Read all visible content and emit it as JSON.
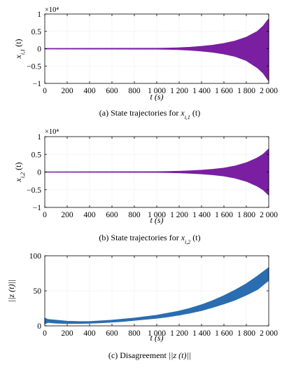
{
  "chart_data": [
    {
      "type": "line",
      "panel": "a",
      "caption": "(a) State trajectories for x_{i,1} (t)",
      "caption_parts": {
        "prefix": "(a) State trajectories for ",
        "var": "x",
        "sub": "i,1",
        "suffix": " (t)"
      },
      "ylabel_parts": {
        "var": "x",
        "sub": "i,1",
        "suffix": " (t)"
      },
      "xlabel": "t (s)",
      "exponent_label": "×10⁴",
      "xlim": [
        0,
        2000
      ],
      "ylim": [
        -1,
        1
      ],
      "xticks": [
        0,
        200,
        400,
        600,
        800,
        1000,
        1200,
        1400,
        1600,
        1800,
        2000
      ],
      "xtick_labels": [
        "0",
        "200",
        "400",
        "600",
        "800",
        "1 000",
        "1 200",
        "1 400",
        "1 600",
        "1 800",
        "2 000"
      ],
      "yticks": [
        -1,
        -0.5,
        0,
        0.5,
        1
      ],
      "ytick_labels": [
        "−1",
        "−0.5",
        "0",
        "0.5",
        "1"
      ],
      "grid": true,
      "color": "#7a1fa2",
      "series": [
        {
          "x": [
            0,
            1000,
            1100,
            1200,
            1300,
            1400,
            1500,
            1600,
            1700,
            1800,
            1900,
            1950,
            2000
          ],
          "upper": [
            0.005,
            0.01,
            0.015,
            0.025,
            0.04,
            0.065,
            0.1,
            0.15,
            0.22,
            0.33,
            0.5,
            0.65,
            0.86
          ],
          "lower": [
            -0.005,
            -0.01,
            -0.015,
            -0.025,
            -0.04,
            -0.065,
            -0.1,
            -0.15,
            -0.22,
            -0.34,
            -0.55,
            -0.7,
            -0.93
          ]
        }
      ]
    },
    {
      "type": "line",
      "panel": "b",
      "caption": "(b) State trajectories for x_{i,2} (t)",
      "caption_parts": {
        "prefix": "(b) State trajectories for ",
        "var": "x",
        "sub": "i,2",
        "suffix": " (t)"
      },
      "ylabel_parts": {
        "var": "x",
        "sub": "i,2",
        "suffix": " (t)"
      },
      "xlabel": "t (s)",
      "exponent_label": "×10⁴",
      "xlim": [
        0,
        2000
      ],
      "ylim": [
        -1,
        1
      ],
      "xticks": [
        0,
        200,
        400,
        600,
        800,
        1000,
        1200,
        1400,
        1600,
        1800,
        2000
      ],
      "xtick_labels": [
        "0",
        "200",
        "400",
        "600",
        "800",
        "1 000",
        "1 200",
        "1 400",
        "1 600",
        "1 800",
        "2 000"
      ],
      "yticks": [
        -1,
        -0.5,
        0,
        0.5,
        1
      ],
      "ytick_labels": [
        "−1",
        "−0.5",
        "0",
        "0.5",
        "1"
      ],
      "grid": true,
      "color": "#7a1fa2",
      "series": [
        {
          "x": [
            0,
            1000,
            1100,
            1200,
            1300,
            1400,
            1500,
            1600,
            1700,
            1800,
            1900,
            1950,
            2000
          ],
          "upper": [
            0.004,
            0.008,
            0.012,
            0.02,
            0.032,
            0.05,
            0.075,
            0.11,
            0.17,
            0.26,
            0.4,
            0.5,
            0.65
          ],
          "lower": [
            -0.004,
            -0.008,
            -0.012,
            -0.02,
            -0.032,
            -0.05,
            -0.075,
            -0.11,
            -0.17,
            -0.26,
            -0.4,
            -0.5,
            -0.65
          ]
        }
      ]
    },
    {
      "type": "line",
      "panel": "c",
      "caption": "(c) Disagreement ||z (t)||",
      "caption_parts": {
        "prefix": "(c) Disagreement ",
        "var": "||z (t)||",
        "sub": "",
        "suffix": ""
      },
      "ylabel": "||z (t)||",
      "xlabel": "t (s)",
      "xlim": [
        0,
        2000
      ],
      "ylim": [
        0,
        100
      ],
      "xticks": [
        0,
        200,
        400,
        600,
        800,
        1000,
        1200,
        1400,
        1600,
        1800,
        2000
      ],
      "xtick_labels": [
        "0",
        "200",
        "400",
        "600",
        "800",
        "1 000",
        "1 200",
        "1 400",
        "1 600",
        "1 800",
        "2 000"
      ],
      "yticks": [
        0,
        50,
        100
      ],
      "ytick_labels": [
        "0",
        "50",
        "100"
      ],
      "grid": true,
      "color": "#2a6db0",
      "series": [
        {
          "x": [
            0,
            30,
            100,
            200,
            300,
            400,
            500,
            600,
            700,
            800,
            900,
            1000,
            1100,
            1200,
            1300,
            1400,
            1500,
            1600,
            1700,
            1800,
            1900,
            2000
          ],
          "upper": [
            11,
            9,
            8,
            6.5,
            6,
            6,
            7,
            8,
            9.5,
            11,
            13,
            15,
            18,
            21,
            25,
            30,
            36,
            43,
            51,
            60,
            71,
            83
          ],
          "lower": [
            3,
            5,
            4,
            3.5,
            3.5,
            3.8,
            4.5,
            5.5,
            6.5,
            8,
            9.5,
            11,
            13,
            15.5,
            18.5,
            22,
            26.5,
            31.5,
            37,
            44,
            52,
            65
          ]
        }
      ]
    }
  ]
}
